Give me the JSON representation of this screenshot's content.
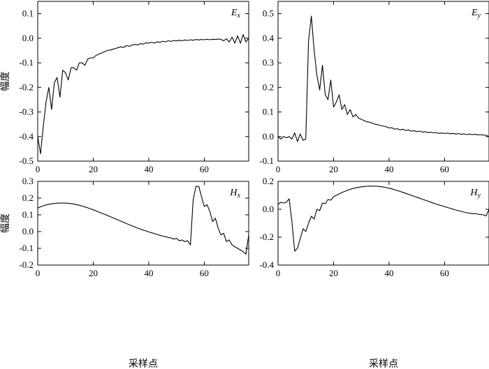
{
  "chart_data": [
    {
      "type": "line",
      "panel_label": "E",
      "panel_sub": "x",
      "ylabel": "幅度",
      "xlabel": "",
      "xlim": [
        0,
        76
      ],
      "ylim": [
        -0.5,
        0.15
      ],
      "xticks": [
        "0",
        "20",
        "40",
        "60"
      ],
      "xtick_values": [
        0,
        20,
        40,
        60
      ],
      "yticks": [
        "0.1",
        "0.0",
        "-0.1",
        "-0.2",
        "-0.3",
        "-0.4",
        "-0.5"
      ],
      "ytick_values": [
        0.1,
        0.0,
        -0.1,
        -0.2,
        -0.3,
        -0.4,
        -0.5
      ],
      "x": [
        0,
        1,
        2,
        3,
        4,
        5,
        6,
        7,
        8,
        9,
        10,
        11,
        12,
        13,
        14,
        15,
        16,
        17,
        18,
        19,
        20,
        21,
        22,
        23,
        24,
        25,
        26,
        27,
        28,
        29,
        30,
        31,
        32,
        33,
        34,
        35,
        36,
        37,
        38,
        39,
        40,
        41,
        42,
        43,
        44,
        45,
        46,
        47,
        48,
        49,
        50,
        51,
        52,
        53,
        54,
        55,
        56,
        57,
        58,
        59,
        60,
        61,
        62,
        63,
        64,
        65,
        66,
        67,
        68,
        69,
        70,
        71,
        72,
        73,
        74,
        75,
        76
      ],
      "y": [
        -0.4,
        -0.47,
        -0.36,
        -0.26,
        -0.2,
        -0.29,
        -0.18,
        -0.16,
        -0.24,
        -0.13,
        -0.14,
        -0.17,
        -0.12,
        -0.12,
        -0.13,
        -0.1,
        -0.1,
        -0.11,
        -0.085,
        -0.08,
        -0.08,
        -0.07,
        -0.065,
        -0.06,
        -0.055,
        -0.05,
        -0.048,
        -0.045,
        -0.042,
        -0.038,
        -0.035,
        -0.037,
        -0.03,
        -0.033,
        -0.028,
        -0.025,
        -0.027,
        -0.022,
        -0.024,
        -0.018,
        -0.02,
        -0.016,
        -0.02,
        -0.014,
        -0.017,
        -0.012,
        -0.015,
        -0.01,
        -0.013,
        -0.009,
        -0.011,
        -0.008,
        -0.01,
        -0.007,
        -0.009,
        -0.006,
        -0.008,
        -0.005,
        -0.007,
        -0.005,
        -0.006,
        -0.004,
        -0.006,
        -0.004,
        -0.005,
        -0.003,
        -0.005,
        -0.01,
        -0.002,
        -0.015,
        0.005,
        -0.02,
        0.01,
        -0.02,
        0.015,
        -0.015,
        0.0
      ]
    },
    {
      "type": "line",
      "panel_label": "E",
      "panel_sub": "y",
      "ylabel": "",
      "xlabel": "",
      "xlim": [
        0,
        76
      ],
      "ylim": [
        -0.1,
        0.55
      ],
      "xticks": [
        "0",
        "20",
        "40",
        "60"
      ],
      "xtick_values": [
        0,
        20,
        40,
        60
      ],
      "yticks": [
        "0.5",
        "0.4",
        "0.3",
        "0.2",
        "0.1",
        "0.0",
        "-0.1"
      ],
      "ytick_values": [
        0.5,
        0.4,
        0.3,
        0.2,
        0.1,
        0.0,
        -0.1
      ],
      "x": [
        0,
        1,
        2,
        3,
        4,
        5,
        6,
        7,
        8,
        9,
        10,
        11,
        12,
        13,
        14,
        15,
        16,
        17,
        18,
        19,
        20,
        21,
        22,
        23,
        24,
        25,
        26,
        27,
        28,
        29,
        30,
        31,
        32,
        33,
        34,
        35,
        36,
        37,
        38,
        39,
        40,
        41,
        42,
        43,
        44,
        45,
        46,
        47,
        48,
        49,
        50,
        51,
        52,
        53,
        54,
        55,
        56,
        57,
        58,
        59,
        60,
        61,
        62,
        63,
        64,
        65,
        66,
        67,
        68,
        69,
        70,
        71,
        72,
        73,
        74,
        75,
        76
      ],
      "y": [
        0.0,
        -0.01,
        0.0,
        -0.005,
        0.0,
        -0.01,
        0.015,
        -0.02,
        0.01,
        -0.015,
        -0.01,
        0.39,
        0.49,
        0.35,
        0.25,
        0.19,
        0.29,
        0.17,
        0.15,
        0.23,
        0.12,
        0.14,
        0.17,
        0.11,
        0.13,
        0.09,
        0.11,
        0.08,
        0.09,
        0.075,
        0.07,
        0.065,
        0.06,
        0.058,
        0.055,
        0.05,
        0.048,
        0.045,
        0.042,
        0.04,
        0.035,
        0.036,
        0.03,
        0.032,
        0.027,
        0.03,
        0.025,
        0.027,
        0.022,
        0.024,
        0.02,
        0.022,
        0.018,
        0.02,
        0.016,
        0.018,
        0.015,
        0.016,
        0.013,
        0.015,
        0.012,
        0.014,
        0.011,
        0.013,
        0.01,
        0.012,
        0.009,
        0.011,
        0.008,
        0.01,
        0.008,
        0.009,
        0.007,
        0.008,
        0.006,
        0.005,
        0.0
      ]
    },
    {
      "type": "line",
      "panel_label": "H",
      "panel_sub": "x",
      "ylabel": "幅度",
      "xlabel": "采样点",
      "xlim": [
        0,
        76
      ],
      "ylim": [
        -0.2,
        0.3
      ],
      "xticks": [
        "0",
        "20",
        "40",
        "60"
      ],
      "xtick_values": [
        0,
        20,
        40,
        60
      ],
      "yticks": [
        "0.3",
        "0.2",
        "0.1",
        "0.0",
        "-0.1",
        "-0.2"
      ],
      "ytick_values": [
        0.3,
        0.2,
        0.1,
        0.0,
        -0.1,
        -0.2
      ],
      "x": [
        0,
        1,
        2,
        3,
        4,
        5,
        6,
        7,
        8,
        9,
        10,
        11,
        12,
        13,
        14,
        15,
        16,
        17,
        18,
        19,
        20,
        21,
        22,
        23,
        24,
        25,
        26,
        27,
        28,
        29,
        30,
        31,
        32,
        33,
        34,
        35,
        36,
        37,
        38,
        39,
        40,
        41,
        42,
        43,
        44,
        45,
        46,
        47,
        48,
        49,
        50,
        51,
        52,
        53,
        54,
        55,
        56,
        57,
        58,
        59,
        60,
        61,
        62,
        63,
        64,
        65,
        66,
        67,
        68,
        69,
        70,
        71,
        72,
        73,
        74,
        75,
        76
      ],
      "y": [
        0.14,
        0.148,
        0.154,
        0.159,
        0.163,
        0.166,
        0.168,
        0.17,
        0.17,
        0.171,
        0.17,
        0.169,
        0.167,
        0.164,
        0.161,
        0.157,
        0.152,
        0.147,
        0.142,
        0.136,
        0.13,
        0.124,
        0.117,
        0.11,
        0.104,
        0.097,
        0.09,
        0.083,
        0.076,
        0.069,
        0.062,
        0.055,
        0.048,
        0.041,
        0.034,
        0.027,
        0.021,
        0.015,
        0.009,
        0.004,
        -0.002,
        -0.007,
        -0.012,
        -0.017,
        -0.022,
        -0.027,
        -0.03,
        -0.035,
        -0.038,
        -0.045,
        -0.04,
        -0.055,
        -0.05,
        -0.06,
        -0.055,
        -0.08,
        0.19,
        0.27,
        0.27,
        0.21,
        0.15,
        0.16,
        0.12,
        0.06,
        0.08,
        0.02,
        -0.02,
        -0.01,
        -0.06,
        -0.05,
        -0.08,
        -0.09,
        -0.1,
        -0.11,
        -0.12,
        -0.135,
        -0.02
      ]
    },
    {
      "type": "line",
      "panel_label": "H",
      "panel_sub": "y",
      "ylabel": "",
      "xlabel": "采样点",
      "xlim": [
        0,
        76
      ],
      "ylim": [
        -0.4,
        0.2
      ],
      "xticks": [
        "0",
        "20",
        "40",
        "60"
      ],
      "xtick_values": [
        0,
        20,
        40,
        60
      ],
      "yticks": [
        "0.2",
        "0.0",
        "-0.2",
        "-0.4"
      ],
      "ytick_values": [
        0.2,
        0.0,
        -0.2,
        -0.4
      ],
      "x": [
        0,
        1,
        2,
        3,
        4,
        5,
        6,
        7,
        8,
        9,
        10,
        11,
        12,
        13,
        14,
        15,
        16,
        17,
        18,
        19,
        20,
        21,
        22,
        23,
        24,
        25,
        26,
        27,
        28,
        29,
        30,
        31,
        32,
        33,
        34,
        35,
        36,
        37,
        38,
        39,
        40,
        41,
        42,
        43,
        44,
        45,
        46,
        47,
        48,
        49,
        50,
        51,
        52,
        53,
        54,
        55,
        56,
        57,
        58,
        59,
        60,
        61,
        62,
        63,
        64,
        65,
        66,
        67,
        68,
        69,
        70,
        71,
        72,
        73,
        74,
        75,
        76
      ],
      "y": [
        0.035,
        0.05,
        0.045,
        0.05,
        0.075,
        -0.09,
        -0.3,
        -0.28,
        -0.21,
        -0.14,
        -0.16,
        -0.1,
        -0.05,
        -0.07,
        0.0,
        -0.01,
        0.045,
        0.04,
        0.07,
        0.065,
        0.09,
        0.1,
        0.11,
        0.12,
        0.128,
        0.136,
        0.143,
        0.149,
        0.154,
        0.158,
        0.161,
        0.163,
        0.165,
        0.166,
        0.166,
        0.165,
        0.164,
        0.162,
        0.159,
        0.155,
        0.151,
        0.146,
        0.14,
        0.134,
        0.128,
        0.121,
        0.114,
        0.107,
        0.1,
        0.093,
        0.086,
        0.079,
        0.072,
        0.065,
        0.058,
        0.051,
        0.044,
        0.037,
        0.031,
        0.025,
        0.019,
        0.013,
        0.007,
        0.001,
        -0.005,
        -0.01,
        -0.015,
        -0.02,
        -0.025,
        -0.028,
        -0.032,
        -0.03,
        -0.035,
        -0.038,
        -0.04,
        -0.048,
        0.0
      ]
    }
  ]
}
